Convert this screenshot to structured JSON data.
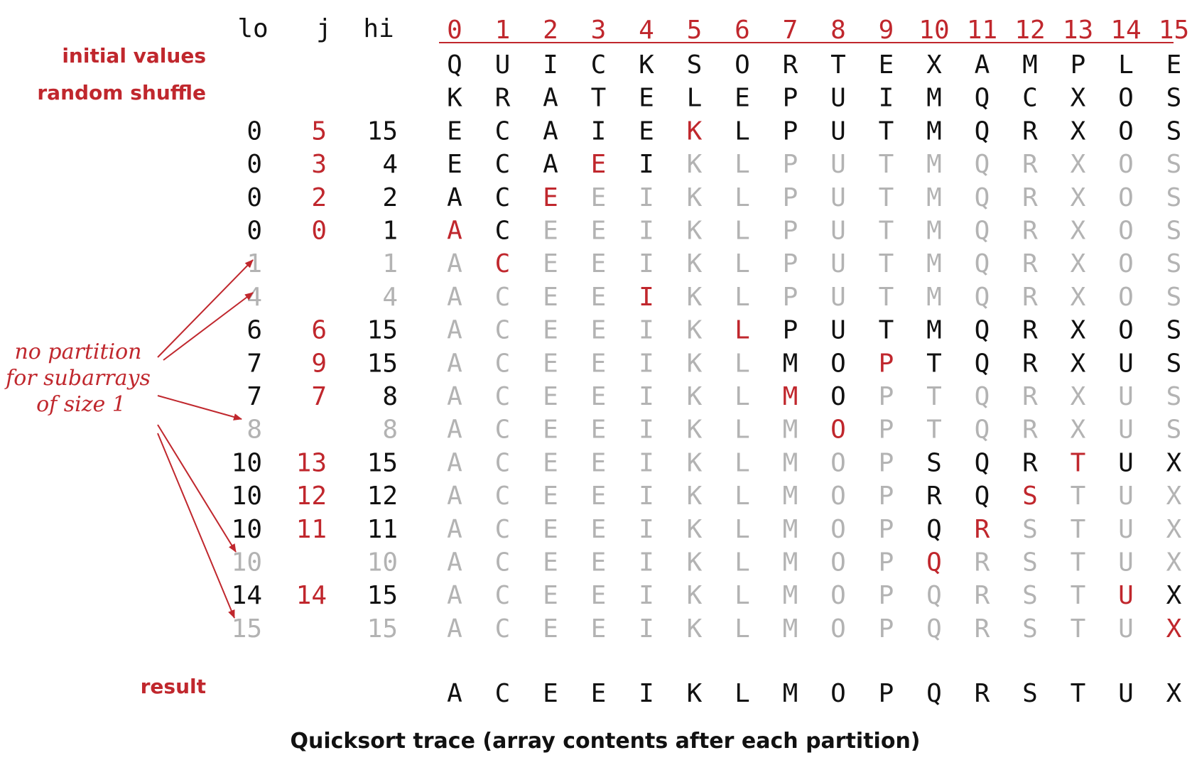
{
  "column_headers": {
    "lo": "lo",
    "j": "j",
    "hi": "hi"
  },
  "indices": [
    "0",
    "1",
    "2",
    "3",
    "4",
    "5",
    "6",
    "7",
    "8",
    "9",
    "10",
    "11",
    "12",
    "13",
    "14",
    "15"
  ],
  "row_labels": {
    "initial": "initial values",
    "shuffle": "random shuffle",
    "result": "result"
  },
  "rows": [
    {
      "kind": "initial",
      "lo": "",
      "j": "",
      "hi": "",
      "status": "normal",
      "chars": [
        "Q",
        "U",
        "I",
        "C",
        "K",
        "S",
        "O",
        "R",
        "T",
        "E",
        "X",
        "A",
        "M",
        "P",
        "L",
        "E"
      ],
      "active_from": 0,
      "active_to": 15,
      "pivot": null
    },
    {
      "kind": "shuffle",
      "lo": "",
      "j": "",
      "hi": "",
      "status": "normal",
      "chars": [
        "K",
        "R",
        "A",
        "T",
        "E",
        "L",
        "E",
        "P",
        "U",
        "I",
        "M",
        "Q",
        "C",
        "X",
        "O",
        "S"
      ],
      "active_from": 0,
      "active_to": 15,
      "pivot": null
    },
    {
      "kind": "step",
      "lo": "0",
      "j": "5",
      "hi": "15",
      "status": "normal",
      "chars": [
        "E",
        "C",
        "A",
        "I",
        "E",
        "K",
        "L",
        "P",
        "U",
        "T",
        "M",
        "Q",
        "R",
        "X",
        "O",
        "S"
      ],
      "active_from": 0,
      "active_to": 15,
      "pivot": 5
    },
    {
      "kind": "step",
      "lo": "0",
      "j": "3",
      "hi": "4",
      "status": "normal",
      "chars": [
        "E",
        "C",
        "A",
        "E",
        "I",
        "K",
        "L",
        "P",
        "U",
        "T",
        "M",
        "Q",
        "R",
        "X",
        "O",
        "S"
      ],
      "active_from": 0,
      "active_to": 4,
      "pivot": 3
    },
    {
      "kind": "step",
      "lo": "0",
      "j": "2",
      "hi": "2",
      "status": "normal",
      "chars": [
        "A",
        "C",
        "E",
        "E",
        "I",
        "K",
        "L",
        "P",
        "U",
        "T",
        "M",
        "Q",
        "R",
        "X",
        "O",
        "S"
      ],
      "active_from": 0,
      "active_to": 2,
      "pivot": 2
    },
    {
      "kind": "step",
      "lo": "0",
      "j": "0",
      "hi": "1",
      "status": "normal",
      "chars": [
        "A",
        "C",
        "E",
        "E",
        "I",
        "K",
        "L",
        "P",
        "U",
        "T",
        "M",
        "Q",
        "R",
        "X",
        "O",
        "S"
      ],
      "active_from": 0,
      "active_to": 1,
      "pivot": 0
    },
    {
      "kind": "step",
      "lo": "1",
      "j": "",
      "hi": "1",
      "status": "size1",
      "chars": [
        "A",
        "C",
        "E",
        "E",
        "I",
        "K",
        "L",
        "P",
        "U",
        "T",
        "M",
        "Q",
        "R",
        "X",
        "O",
        "S"
      ],
      "active_from": null,
      "active_to": null,
      "pivot": 1
    },
    {
      "kind": "step",
      "lo": "4",
      "j": "",
      "hi": "4",
      "status": "size1",
      "chars": [
        "A",
        "C",
        "E",
        "E",
        "I",
        "K",
        "L",
        "P",
        "U",
        "T",
        "M",
        "Q",
        "R",
        "X",
        "O",
        "S"
      ],
      "active_from": null,
      "active_to": null,
      "pivot": 4
    },
    {
      "kind": "step",
      "lo": "6",
      "j": "6",
      "hi": "15",
      "status": "normal",
      "chars": [
        "A",
        "C",
        "E",
        "E",
        "I",
        "K",
        "L",
        "P",
        "U",
        "T",
        "M",
        "Q",
        "R",
        "X",
        "O",
        "S"
      ],
      "active_from": 6,
      "active_to": 15,
      "pivot": 6
    },
    {
      "kind": "step",
      "lo": "7",
      "j": "9",
      "hi": "15",
      "status": "normal",
      "chars": [
        "A",
        "C",
        "E",
        "E",
        "I",
        "K",
        "L",
        "M",
        "O",
        "P",
        "T",
        "Q",
        "R",
        "X",
        "U",
        "S"
      ],
      "active_from": 7,
      "active_to": 15,
      "pivot": 9
    },
    {
      "kind": "step",
      "lo": "7",
      "j": "7",
      "hi": "8",
      "status": "normal",
      "chars": [
        "A",
        "C",
        "E",
        "E",
        "I",
        "K",
        "L",
        "M",
        "O",
        "P",
        "T",
        "Q",
        "R",
        "X",
        "U",
        "S"
      ],
      "active_from": 7,
      "active_to": 8,
      "pivot": 7
    },
    {
      "kind": "step",
      "lo": "8",
      "j": "",
      "hi": "8",
      "status": "size1",
      "chars": [
        "A",
        "C",
        "E",
        "E",
        "I",
        "K",
        "L",
        "M",
        "O",
        "P",
        "T",
        "Q",
        "R",
        "X",
        "U",
        "S"
      ],
      "active_from": null,
      "active_to": null,
      "pivot": 8
    },
    {
      "kind": "step",
      "lo": "10",
      "j": "13",
      "hi": "15",
      "status": "normal",
      "chars": [
        "A",
        "C",
        "E",
        "E",
        "I",
        "K",
        "L",
        "M",
        "O",
        "P",
        "S",
        "Q",
        "R",
        "T",
        "U",
        "X"
      ],
      "active_from": 10,
      "active_to": 15,
      "pivot": 13
    },
    {
      "kind": "step",
      "lo": "10",
      "j": "12",
      "hi": "12",
      "status": "normal",
      "chars": [
        "A",
        "C",
        "E",
        "E",
        "I",
        "K",
        "L",
        "M",
        "O",
        "P",
        "R",
        "Q",
        "S",
        "T",
        "U",
        "X"
      ],
      "active_from": 10,
      "active_to": 12,
      "pivot": 12
    },
    {
      "kind": "step",
      "lo": "10",
      "j": "11",
      "hi": "11",
      "status": "normal",
      "chars": [
        "A",
        "C",
        "E",
        "E",
        "I",
        "K",
        "L",
        "M",
        "O",
        "P",
        "Q",
        "R",
        "S",
        "T",
        "U",
        "X"
      ],
      "active_from": 10,
      "active_to": 11,
      "pivot": 11
    },
    {
      "kind": "step",
      "lo": "10",
      "j": "",
      "hi": "10",
      "status": "size1",
      "chars": [
        "A",
        "C",
        "E",
        "E",
        "I",
        "K",
        "L",
        "M",
        "O",
        "P",
        "Q",
        "R",
        "S",
        "T",
        "U",
        "X"
      ],
      "active_from": null,
      "active_to": null,
      "pivot": 10
    },
    {
      "kind": "step",
      "lo": "14",
      "j": "14",
      "hi": "15",
      "status": "normal",
      "chars": [
        "A",
        "C",
        "E",
        "E",
        "I",
        "K",
        "L",
        "M",
        "O",
        "P",
        "Q",
        "R",
        "S",
        "T",
        "U",
        "X"
      ],
      "active_from": 14,
      "active_to": 15,
      "pivot": 14
    },
    {
      "kind": "step",
      "lo": "15",
      "j": "",
      "hi": "15",
      "status": "size1",
      "chars": [
        "A",
        "C",
        "E",
        "E",
        "I",
        "K",
        "L",
        "M",
        "O",
        "P",
        "Q",
        "R",
        "S",
        "T",
        "U",
        "X"
      ],
      "active_from": null,
      "active_to": null,
      "pivot": 15
    }
  ],
  "result_chars": [
    "A",
    "C",
    "E",
    "E",
    "I",
    "K",
    "L",
    "M",
    "O",
    "P",
    "Q",
    "R",
    "S",
    "T",
    "U",
    "X"
  ],
  "annotation": [
    "no partition",
    "for subarrays",
    "of size 1"
  ],
  "caption": "Quicksort trace (array contents after each partition)",
  "colors": {
    "accent": "#c0272d",
    "text": "#111111",
    "muted": "#b3b3b3",
    "background": "#ffffff"
  }
}
